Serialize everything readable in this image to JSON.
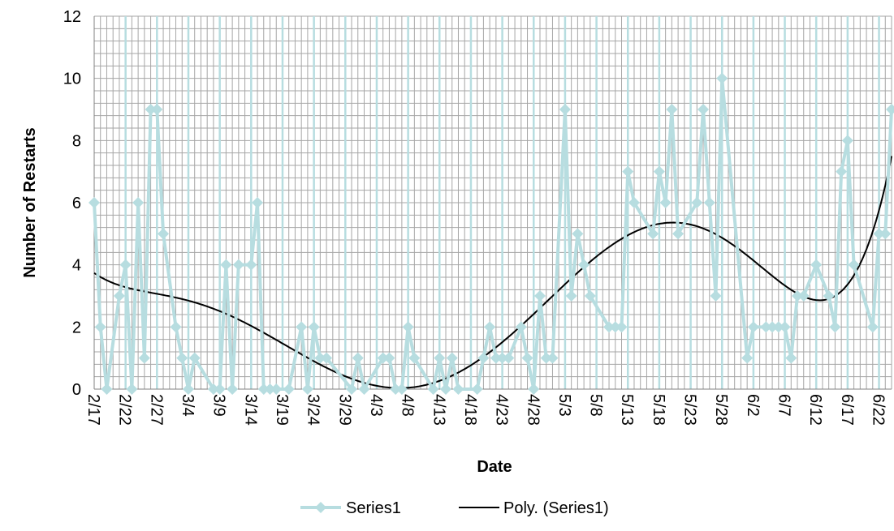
{
  "chart_data": {
    "type": "line",
    "title": "",
    "xlabel": "Date",
    "ylabel": "Number of Restarts",
    "x_range": [
      "2/17",
      "6/24"
    ],
    "ylim": [
      0,
      12
    ],
    "y_ticks": [
      0,
      2,
      4,
      6,
      8,
      10,
      12
    ],
    "x_tick_labels": [
      "2/17",
      "2/22",
      "2/27",
      "3/4",
      "3/9",
      "3/14",
      "3/19",
      "3/24",
      "3/29",
      "4/3",
      "4/8",
      "4/13",
      "4/18",
      "4/23",
      "4/28",
      "5/3",
      "5/8",
      "5/13",
      "5/18",
      "5/23",
      "5/28",
      "6/2",
      "6/7",
      "6/12",
      "6/17",
      "6/22"
    ],
    "grid": true,
    "legend_position": "bottom",
    "colors": {
      "series": "#b7dde0",
      "trend": "#000000",
      "grid": "#a6a6a6",
      "highlight_grid": "#b7dde0"
    },
    "series": [
      {
        "name": "Series1",
        "x": [
          "2/17",
          "2/18",
          "2/19",
          "2/21",
          "2/22",
          "2/23",
          "2/24",
          "2/25",
          "2/26",
          "2/27",
          "2/28",
          "3/2",
          "3/3",
          "3/4",
          "3/5",
          "3/8",
          "3/9",
          "3/10",
          "3/11",
          "3/12",
          "3/14",
          "3/15",
          "3/16",
          "3/17",
          "3/18",
          "3/20",
          "3/22",
          "3/23",
          "3/24",
          "3/25",
          "3/26",
          "3/30",
          "3/31",
          "4/1",
          "4/4",
          "4/5",
          "4/6",
          "4/7",
          "4/8",
          "4/9",
          "4/12",
          "4/13",
          "4/14",
          "4/15",
          "4/16",
          "4/19",
          "4/20",
          "4/21",
          "4/22",
          "4/23",
          "4/24",
          "4/26",
          "4/27",
          "4/28",
          "4/29",
          "4/30",
          "5/1",
          "5/3",
          "5/4",
          "5/5",
          "5/6",
          "5/7",
          "5/10",
          "5/11",
          "5/12",
          "5/13",
          "5/14",
          "5/17",
          "5/18",
          "5/19",
          "5/20",
          "5/21",
          "5/24",
          "5/25",
          "5/26",
          "5/27",
          "5/28",
          "6/1",
          "6/2",
          "6/4",
          "6/5",
          "6/6",
          "6/7",
          "6/8",
          "6/9",
          "6/10",
          "6/12",
          "6/14",
          "6/15",
          "6/16",
          "6/17",
          "6/18",
          "6/21",
          "6/22",
          "6/23",
          "6/24"
        ],
        "values": [
          6,
          2,
          0,
          3,
          4,
          0,
          6,
          1,
          9,
          9,
          5,
          2,
          1,
          0,
          1,
          0,
          0,
          4,
          0,
          4,
          4,
          6,
          0,
          0,
          0,
          0,
          2,
          0,
          2,
          1,
          1,
          0,
          1,
          0,
          1,
          1,
          0,
          0,
          2,
          1,
          0,
          1,
          0,
          1,
          0,
          0,
          1,
          2,
          1,
          1,
          1,
          2,
          1,
          0,
          3,
          1,
          1,
          9,
          3,
          5,
          4,
          3,
          2,
          2,
          2,
          7,
          6,
          5,
          7,
          6,
          9,
          5,
          6,
          9,
          6,
          3,
          10,
          1,
          2,
          2,
          2,
          2,
          2,
          1,
          3,
          3,
          4,
          3,
          2,
          7,
          8,
          4,
          2,
          5,
          5,
          9
        ]
      }
    ],
    "trendline": {
      "name": "Poly. (Series1)",
      "type": "polynomial",
      "source": "Series1"
    }
  }
}
